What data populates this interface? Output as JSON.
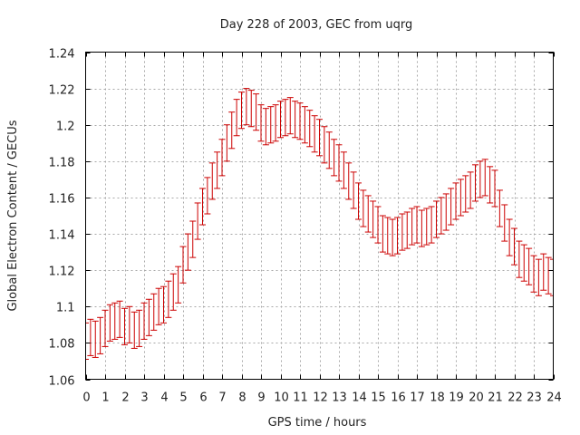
{
  "chart_data": {
    "type": "line",
    "title": "Day 228 of 2003, GEC from uqrg",
    "xlabel": "GPS time / hours",
    "ylabel": "Global Electron Content / GECUs",
    "xlim": [
      0,
      24
    ],
    "ylim": [
      1.06,
      1.24
    ],
    "xticks": [
      0,
      1,
      2,
      3,
      4,
      5,
      6,
      7,
      8,
      9,
      10,
      11,
      12,
      13,
      14,
      15,
      16,
      17,
      18,
      19,
      20,
      21,
      22,
      23,
      24
    ],
    "xtick_labels": [
      "0",
      "1",
      "2",
      "3",
      "4",
      "5",
      "6",
      "7",
      "8",
      "9",
      "10",
      "11",
      "12",
      "13",
      "14",
      "15",
      "16",
      "17",
      "18",
      "19",
      "20",
      "21",
      "22",
      "23",
      "24"
    ],
    "yticks": [
      1.06,
      1.08,
      1.1,
      1.12,
      1.14,
      1.16,
      1.18,
      1.2,
      1.22,
      1.24
    ],
    "ytick_labels": [
      "1.06",
      "1.08",
      "1.1",
      "1.12",
      "1.14",
      "1.16",
      "1.18",
      "1.2",
      "1.22",
      "1.24"
    ],
    "grid": true,
    "legend": "none",
    "color": "#cc0000",
    "error": 0.01,
    "series": [
      {
        "x": [
          0,
          0.25,
          0.5,
          0.75,
          1,
          1.25,
          1.5,
          1.75,
          2,
          2.25,
          2.5,
          2.75,
          3,
          3.25,
          3.5,
          3.75,
          4,
          4.25,
          4.5,
          4.75,
          5,
          5.25,
          5.5,
          5.75,
          6,
          6.25,
          6.5,
          6.75,
          7,
          7.25,
          7.5,
          7.75,
          8,
          8.25,
          8.5,
          8.75,
          9,
          9.25,
          9.5,
          9.75,
          10,
          10.25,
          10.5,
          10.75,
          11,
          11.25,
          11.5,
          11.75,
          12,
          12.25,
          12.5,
          12.75,
          13,
          13.25,
          13.5,
          13.75,
          14,
          14.25,
          14.5,
          14.75,
          15,
          15.25,
          15.5,
          15.75,
          16,
          16.25,
          16.5,
          16.75,
          17,
          17.25,
          17.5,
          17.75,
          18,
          18.25,
          18.5,
          18.75,
          19,
          19.25,
          19.5,
          19.75,
          20,
          20.25,
          20.5,
          20.75,
          21,
          21.25,
          21.5,
          21.75,
          22,
          22.25,
          22.5,
          22.75,
          23,
          23.25,
          23.5,
          23.75,
          24
        ],
        "y": [
          1.081,
          1.083,
          1.082,
          1.084,
          1.088,
          1.091,
          1.092,
          1.093,
          1.089,
          1.09,
          1.087,
          1.088,
          1.092,
          1.094,
          1.097,
          1.1,
          1.101,
          1.104,
          1.108,
          1.112,
          1.123,
          1.13,
          1.137,
          1.147,
          1.155,
          1.161,
          1.169,
          1.175,
          1.182,
          1.19,
          1.197,
          1.204,
          1.208,
          1.21,
          1.209,
          1.207,
          1.201,
          1.199,
          1.2,
          1.201,
          1.203,
          1.204,
          1.205,
          1.203,
          1.202,
          1.2,
          1.198,
          1.195,
          1.193,
          1.189,
          1.186,
          1.182,
          1.179,
          1.175,
          1.169,
          1.164,
          1.158,
          1.154,
          1.151,
          1.148,
          1.145,
          1.14,
          1.139,
          1.138,
          1.139,
          1.141,
          1.142,
          1.144,
          1.145,
          1.143,
          1.144,
          1.145,
          1.148,
          1.15,
          1.152,
          1.155,
          1.158,
          1.16,
          1.162,
          1.164,
          1.168,
          1.17,
          1.171,
          1.167,
          1.165,
          1.154,
          1.146,
          1.138,
          1.133,
          1.126,
          1.124,
          1.122,
          1.118,
          1.116,
          1.119,
          1.117,
          1.116
        ]
      }
    ]
  }
}
